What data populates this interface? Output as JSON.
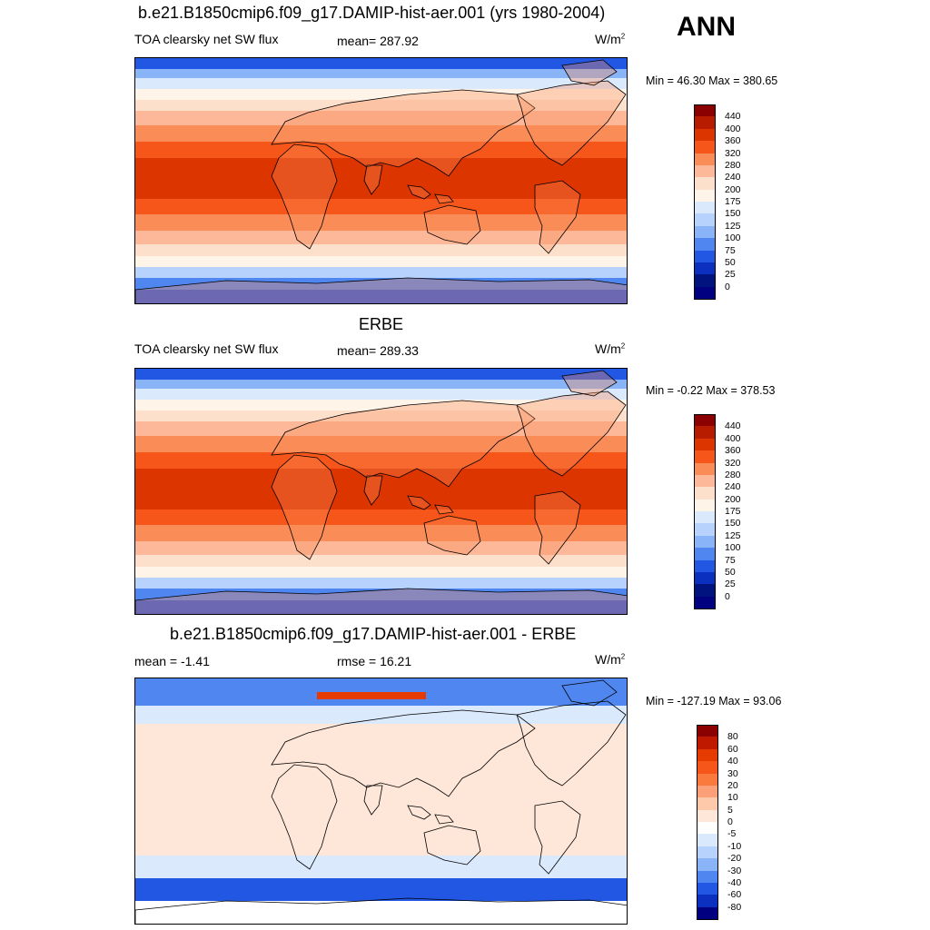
{
  "season": "ANN",
  "panels": [
    {
      "title": "b.e21.B1850cmip6.f09_g17.DAMIP-hist-aer.001 (yrs 1980-2004)",
      "left_label": "TOA clearsky net SW flux",
      "center_label": "mean= 287.92",
      "units": "W/m",
      "units_sup": "2",
      "stats": "Min =  46.30 Max = 380.65",
      "colorbar": {
        "labels": [
          "440",
          "400",
          "360",
          "320",
          "280",
          "240",
          "200",
          "175",
          "150",
          "125",
          "100",
          "75",
          "50",
          "25",
          "0"
        ],
        "colors": [
          "#8b0000",
          "#b81c00",
          "#dd3500",
          "#f6561a",
          "#fa8c58",
          "#fcb898",
          "#fde0cc",
          "#fff4e8",
          "#dbe9fd",
          "#b7d2fc",
          "#8ab4f8",
          "#4f86f0",
          "#2157e2",
          "#0b2fbe",
          "#00137f",
          "#000080"
        ]
      },
      "map_kind": "model"
    },
    {
      "title": "ERBE",
      "left_label": "TOA clearsky net SW flux",
      "center_label": "mean= 289.33",
      "units": "W/m",
      "units_sup": "2",
      "stats": "Min =  -0.22 Max = 378.53",
      "colorbar": {
        "labels": [
          "440",
          "400",
          "360",
          "320",
          "280",
          "240",
          "200",
          "175",
          "150",
          "125",
          "100",
          "75",
          "50",
          "25",
          "0"
        ],
        "colors": [
          "#8b0000",
          "#b81c00",
          "#dd3500",
          "#f6561a",
          "#fa8c58",
          "#fcb898",
          "#fde0cc",
          "#fff4e8",
          "#dbe9fd",
          "#b7d2fc",
          "#8ab4f8",
          "#4f86f0",
          "#2157e2",
          "#0b2fbe",
          "#00137f",
          "#000080"
        ]
      },
      "map_kind": "obs"
    },
    {
      "title": "b.e21.B1850cmip6.f09_g17.DAMIP-hist-aer.001 - ERBE",
      "left_label": "mean =  -1.41",
      "center_label": "rmse =  16.21",
      "units": "W/m",
      "units_sup": "2",
      "stats": "Min = -127.19 Max =  93.06",
      "colorbar": {
        "labels": [
          "80",
          "60",
          "40",
          "30",
          "20",
          "10",
          "5",
          "0",
          "-5",
          "-10",
          "-20",
          "-30",
          "-40",
          "-60",
          "-80"
        ],
        "colors": [
          "#8b0000",
          "#bf1a00",
          "#e53a00",
          "#f7561a",
          "#fa7a3e",
          "#fca07a",
          "#fdc9aa",
          "#fee6d8",
          "#ffffff",
          "#dbe9fd",
          "#b7d2fc",
          "#8ab4f8",
          "#4f86f0",
          "#2157e2",
          "#0b2fbe",
          "#000080"
        ]
      },
      "map_kind": "diff"
    }
  ]
}
